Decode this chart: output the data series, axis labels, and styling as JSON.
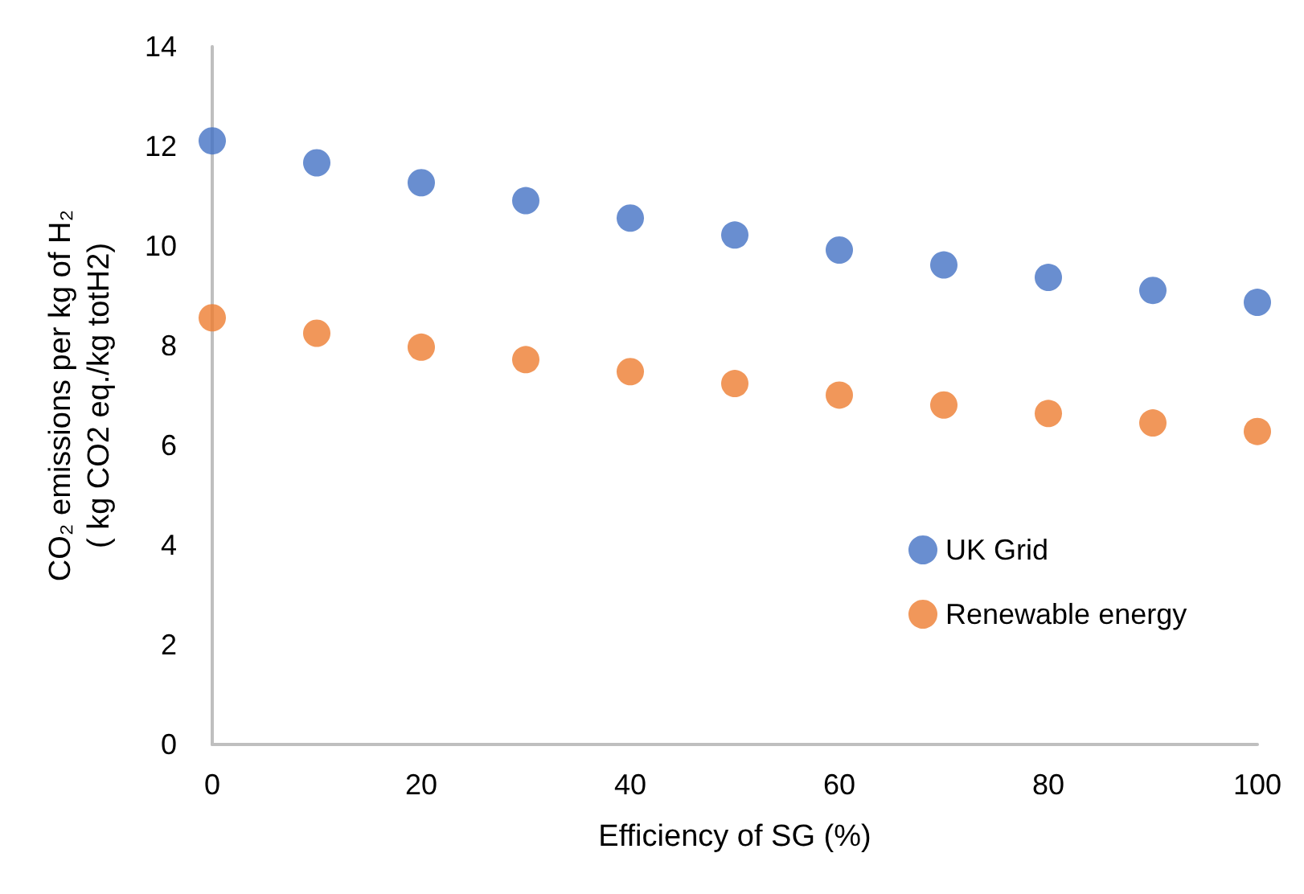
{
  "chart_data": {
    "type": "scatter",
    "xlabel": "Efficiency of SG (%)",
    "ylabel": "CO₂ emissions per kg of H₂\n( kg CO2 eq./kg totH2)",
    "x": [
      0,
      10,
      20,
      30,
      40,
      50,
      60,
      70,
      80,
      90,
      100
    ],
    "series": [
      {
        "name": "UK Grid",
        "color": "#4472c4",
        "values": [
          12.11,
          11.67,
          11.27,
          10.91,
          10.56,
          10.22,
          9.92,
          9.62,
          9.37,
          9.11,
          8.87
        ]
      },
      {
        "name": "Renewable energy",
        "color": "#ed7d31",
        "values": [
          8.56,
          8.25,
          7.97,
          7.72,
          7.48,
          7.24,
          7.01,
          6.81,
          6.64,
          6.45,
          6.28
        ]
      }
    ],
    "xlim": [
      0,
      100
    ],
    "xticks": [
      0,
      20,
      40,
      60,
      80,
      100
    ],
    "ylim": [
      0,
      14
    ],
    "yticks": [
      0,
      2,
      4,
      6,
      8,
      10,
      12,
      14
    ],
    "grid": false,
    "legend": "right",
    "marker": "circle"
  }
}
